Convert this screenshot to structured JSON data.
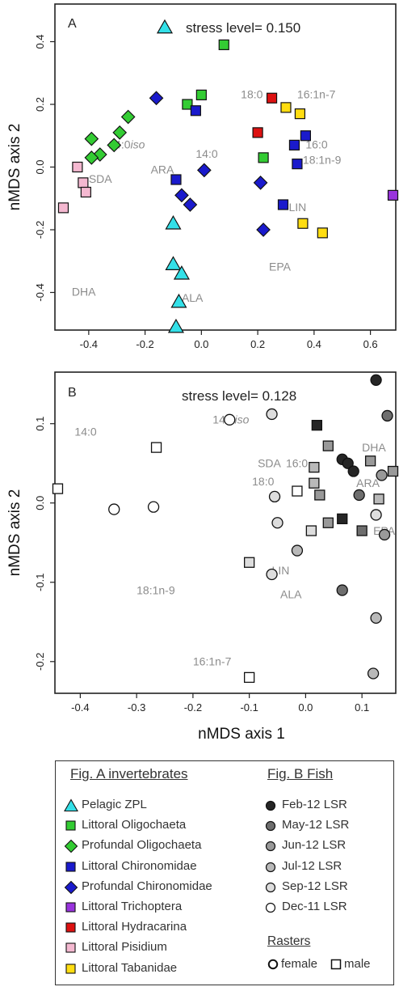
{
  "chart_data": [
    {
      "type": "scatter",
      "panel_label": "A",
      "stress_label": "stress level= 0.150",
      "stress_symbol": "triangle",
      "xlim": [
        -0.52,
        0.69
      ],
      "ylim": [
        -0.52,
        0.52
      ],
      "x_ticks": [
        "-0.4",
        "-0.2",
        "0.0",
        "0.2",
        "0.4",
        "0.6"
      ],
      "x_tick_values": [
        -0.4,
        -0.2,
        0.0,
        0.2,
        0.4,
        0.6
      ],
      "y_ticks": [
        "0.4",
        "0.2",
        "0.0",
        "-0.2",
        "-0.4"
      ],
      "y_tick_values": [
        0.4,
        0.2,
        0.0,
        -0.2,
        -0.4
      ],
      "ylabel": "nMDS axis 2",
      "series": [
        {
          "name": "Pelagic ZPL",
          "color": "#33e0e8",
          "marker": "triangle",
          "points": [
            [
              -0.1,
              -0.18
            ],
            [
              -0.1,
              -0.31
            ],
            [
              -0.07,
              -0.34
            ],
            [
              -0.08,
              -0.43
            ],
            [
              -0.09,
              -0.51
            ]
          ]
        },
        {
          "name": "Littoral Oligochaeta",
          "color": "#33cc33",
          "marker": "square",
          "points": [
            [
              0.08,
              0.39
            ],
            [
              -0.05,
              0.2
            ],
            [
              0.0,
              0.23
            ],
            [
              0.22,
              0.03
            ]
          ]
        },
        {
          "name": "Profundal Oligochaeta",
          "color": "#33cc33",
          "marker": "diamond",
          "points": [
            [
              -0.26,
              0.16
            ],
            [
              -0.29,
              0.11
            ],
            [
              -0.31,
              0.07
            ],
            [
              -0.36,
              0.04
            ],
            [
              -0.39,
              0.03
            ],
            [
              -0.39,
              0.09
            ]
          ]
        },
        {
          "name": "Littoral Chironomidae",
          "color": "#1a1acc",
          "marker": "square",
          "points": [
            [
              -0.02,
              0.18
            ],
            [
              -0.09,
              -0.04
            ],
            [
              0.33,
              0.07
            ],
            [
              0.37,
              0.1
            ],
            [
              0.34,
              0.01
            ],
            [
              0.29,
              -0.12
            ]
          ]
        },
        {
          "name": "Profundal Chironomidae",
          "color": "#1a1acc",
          "marker": "diamond",
          "points": [
            [
              -0.16,
              0.22
            ],
            [
              0.01,
              -0.01
            ],
            [
              -0.07,
              -0.09
            ],
            [
              -0.04,
              -0.12
            ],
            [
              0.21,
              -0.05
            ],
            [
              0.22,
              -0.2
            ]
          ]
        },
        {
          "name": "Littoral Trichoptera",
          "color": "#9933dd",
          "marker": "square",
          "points": [
            [
              0.68,
              -0.09
            ]
          ]
        },
        {
          "name": "Littoral Hydracarina",
          "color": "#dd1111",
          "marker": "square",
          "points": [
            [
              0.25,
              0.22
            ],
            [
              0.2,
              0.11
            ]
          ]
        },
        {
          "name": "Littoral Pisidium",
          "color": "#f4b8d0",
          "marker": "square",
          "points": [
            [
              -0.44,
              0.0
            ],
            [
              -0.42,
              -0.05
            ],
            [
              -0.41,
              -0.08
            ],
            [
              -0.49,
              -0.13
            ]
          ]
        },
        {
          "name": "Littoral Tabanidae",
          "color": "#ffdd11",
          "marker": "square",
          "points": [
            [
              0.3,
              0.19
            ],
            [
              0.35,
              0.17
            ],
            [
              0.36,
              -0.18
            ],
            [
              0.43,
              -0.21
            ]
          ]
        }
      ],
      "annotations": [
        {
          "text": "SDA",
          "x": -0.4,
          "y": -0.05
        },
        {
          "text": "ARA",
          "x": -0.18,
          "y": -0.02
        },
        {
          "text": "14:0",
          "x": -0.02,
          "y": 0.03
        },
        {
          "text": "18:0",
          "x": 0.14,
          "y": 0.22
        },
        {
          "text": "16:1n-7",
          "x": 0.34,
          "y": 0.22
        },
        {
          "text": "16:0",
          "x": 0.37,
          "y": 0.06
        },
        {
          "text": "18:1n-9",
          "x": 0.36,
          "y": 0.01
        },
        {
          "text": "LIN",
          "x": 0.31,
          "y": -0.14
        },
        {
          "text": "EPA",
          "x": 0.24,
          "y": -0.33
        },
        {
          "text": "DHA",
          "x": -0.46,
          "y": -0.41
        },
        {
          "text": "ALA",
          "x": -0.07,
          "y": -0.43
        }
      ],
      "annotation_iso": {
        "prefix": "14:0",
        "suffix": "iso",
        "x": -0.33,
        "y": 0.06
      }
    },
    {
      "type": "scatter",
      "panel_label": "B",
      "stress_label": "stress level= 0.128",
      "xlim": [
        -0.445,
        0.16
      ],
      "ylim": [
        -0.24,
        0.165
      ],
      "x_ticks": [
        "-0.4",
        "-0.3",
        "-0.2",
        "-0.1",
        "0.0",
        "0.1"
      ],
      "x_tick_values": [
        -0.4,
        -0.3,
        -0.2,
        -0.1,
        0.0,
        0.1
      ],
      "y_ticks": [
        "0.1",
        "0.0",
        "-0.1",
        "-0.2"
      ],
      "y_tick_values": [
        0.1,
        0.0,
        -0.1,
        -0.2
      ],
      "xlabel": "nMDS axis 1",
      "ylabel": "nMDS axis 2",
      "series": [
        {
          "name": "Feb-12 LSR",
          "color": "#262626",
          "female": [
            [
              0.125,
              0.155
            ],
            [
              0.065,
              0.055
            ],
            [
              0.075,
              0.05
            ],
            [
              0.085,
              0.04
            ]
          ],
          "male": [
            [
              0.02,
              0.098
            ],
            [
              0.065,
              -0.02
            ]
          ]
        },
        {
          "name": "May-12 LSR",
          "color": "#6e6e6e",
          "female": [
            [
              0.145,
              0.11
            ],
            [
              0.065,
              -0.11
            ],
            [
              0.095,
              0.01
            ]
          ],
          "male": [
            [
              0.1,
              -0.035
            ]
          ]
        },
        {
          "name": "Jun-12 LSR",
          "color": "#999999",
          "female": [
            [
              0.135,
              0.035
            ],
            [
              0.14,
              -0.04
            ]
          ],
          "male": [
            [
              0.155,
              0.04
            ],
            [
              0.04,
              0.072
            ],
            [
              0.115,
              0.053
            ],
            [
              0.025,
              0.01
            ],
            [
              0.04,
              -0.025
            ]
          ]
        },
        {
          "name": "Jul-12 LSR",
          "color": "#b9b9b9",
          "female": [
            [
              0.125,
              -0.145
            ],
            [
              0.12,
              -0.215
            ],
            [
              -0.015,
              -0.06
            ]
          ],
          "male": [
            [
              0.015,
              0.045
            ],
            [
              0.015,
              0.025
            ],
            [
              0.13,
              0.005
            ]
          ]
        },
        {
          "name": "Sep-12 LSR",
          "color": "#dddddd",
          "female": [
            [
              -0.06,
              0.112
            ],
            [
              -0.055,
              0.008
            ],
            [
              -0.05,
              -0.025
            ],
            [
              0.125,
              -0.015
            ],
            [
              -0.06,
              -0.09
            ]
          ],
          "male": [
            [
              0.01,
              -0.035
            ],
            [
              -0.1,
              -0.075
            ]
          ]
        },
        {
          "name": "Dec-11 LSR",
          "color": "#ffffff",
          "female": [
            [
              -0.135,
              0.105
            ],
            [
              -0.27,
              -0.005
            ],
            [
              -0.34,
              -0.008
            ]
          ],
          "male": [
            [
              -0.265,
              0.07
            ],
            [
              -0.1,
              -0.22
            ],
            [
              -0.44,
              0.018
            ],
            [
              -0.015,
              0.015
            ]
          ]
        }
      ],
      "annotations": [
        {
          "text": "14:0",
          "x": -0.41,
          "y": 0.085
        },
        {
          "text": "SDA",
          "x": -0.085,
          "y": 0.045
        },
        {
          "text": "16:0",
          "x": -0.035,
          "y": 0.045
        },
        {
          "text": "18:0",
          "x": -0.095,
          "y": 0.022
        },
        {
          "text": "DHA",
          "x": 0.1,
          "y": 0.065
        },
        {
          "text": "ARA",
          "x": 0.09,
          "y": 0.02
        },
        {
          "text": "EPA",
          "x": 0.12,
          "y": -0.04
        },
        {
          "text": "LIN",
          "x": -0.06,
          "y": -0.09
        },
        {
          "text": "ALA",
          "x": -0.045,
          "y": -0.12
        },
        {
          "text": "18:1n-9",
          "x": -0.3,
          "y": -0.115
        },
        {
          "text": "16:1n-7",
          "x": -0.2,
          "y": -0.205
        }
      ],
      "annotation_iso": {
        "prefix": "14:0",
        "suffix": "iso",
        "x": -0.165,
        "y": 0.1
      }
    }
  ],
  "legend": {
    "fig_a_title": "Fig. A invertebrates",
    "fig_a_items": [
      {
        "label": "Pelagic ZPL",
        "color": "#33e0e8",
        "marker": "triangle"
      },
      {
        "label": "Littoral Oligochaeta",
        "color": "#33cc33",
        "marker": "square"
      },
      {
        "label": "Profundal Oligochaeta",
        "color": "#33cc33",
        "marker": "diamond"
      },
      {
        "label": "Littoral Chironomidae",
        "color": "#1a1acc",
        "marker": "square"
      },
      {
        "label": "Profundal Chironomidae",
        "color": "#1a1acc",
        "marker": "diamond"
      },
      {
        "label": "Littoral Trichoptera",
        "color": "#9933dd",
        "marker": "square"
      },
      {
        "label": "Littoral Hydracarina",
        "color": "#dd1111",
        "marker": "square"
      },
      {
        "label": "Littoral Pisidium",
        "color": "#f4b8d0",
        "marker": "square"
      },
      {
        "label": "Littoral Tabanidae",
        "color": "#ffdd11",
        "marker": "square"
      }
    ],
    "fig_b_title": "Fig. B Fish",
    "fig_b_items": [
      {
        "label": "Feb-12 LSR",
        "color": "#262626"
      },
      {
        "label": "May-12 LSR",
        "color": "#6e6e6e"
      },
      {
        "label": "Jun-12 LSR",
        "color": "#999999"
      },
      {
        "label": "Jul-12 LSR",
        "color": "#b9b9b9"
      },
      {
        "label": "Sep-12 LSR",
        "color": "#dddddd"
      },
      {
        "label": "Dec-11 LSR",
        "color": "#ffffff"
      }
    ],
    "rasters_title": "Rasters",
    "raster_female": "female",
    "raster_male": "male"
  }
}
